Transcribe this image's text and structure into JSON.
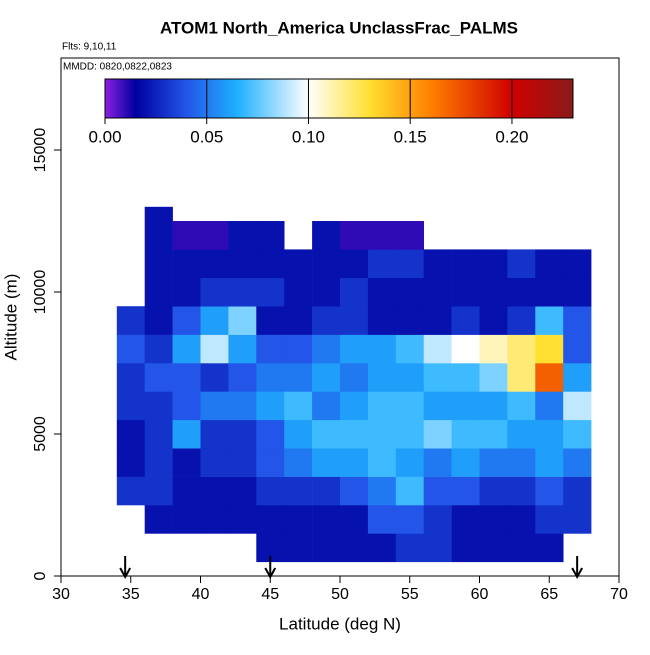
{
  "chart_data": {
    "type": "heatmap",
    "title": "ATOM1 North_America UnclassFrac_PALMS",
    "flights_note": "Flts: 9,10,11",
    "dates_note": "MMDD: 0820,0822,0823",
    "x_label": "Latitude (deg N)",
    "y_label": "Altitude (m)",
    "xlim": [
      30,
      70
    ],
    "xticks": [
      30,
      35,
      40,
      45,
      50,
      55,
      60,
      65,
      70
    ],
    "ylim": [
      0,
      18240
    ],
    "yticks": [
      0,
      5000,
      10000,
      15000
    ],
    "x_edges": [
      34,
      36,
      38,
      40,
      42,
      44,
      46,
      48,
      50,
      52,
      54,
      56,
      58,
      60,
      62,
      64,
      66,
      68
    ],
    "y_edges": [
      500,
      1500,
      2500,
      3500,
      4500,
      5500,
      6500,
      7500,
      8500,
      9500,
      10500,
      11500,
      12500,
      13000
    ],
    "z": [
      [
        null,
        null,
        null,
        null,
        null,
        0.02,
        0.02,
        0.02,
        0.02,
        0.02,
        0.03,
        0.03,
        0.02,
        0.02,
        0.02,
        0.02,
        null
      ],
      [
        null,
        0.02,
        0.02,
        0.02,
        0.02,
        0.02,
        0.02,
        0.02,
        0.02,
        0.04,
        0.04,
        0.03,
        0.02,
        0.02,
        0.02,
        0.03,
        0.03
      ],
      [
        0.03,
        0.03,
        0.02,
        0.02,
        0.02,
        0.03,
        0.03,
        0.03,
        0.04,
        0.05,
        0.07,
        0.04,
        0.04,
        0.03,
        0.03,
        0.04,
        0.03
      ],
      [
        0.02,
        0.03,
        0.02,
        0.03,
        0.03,
        0.04,
        0.05,
        0.06,
        0.06,
        0.07,
        0.06,
        0.05,
        0.06,
        0.05,
        0.05,
        0.06,
        0.05
      ],
      [
        0.02,
        0.03,
        0.06,
        0.03,
        0.03,
        0.04,
        0.06,
        0.07,
        0.07,
        0.07,
        0.07,
        0.08,
        0.07,
        0.07,
        0.06,
        0.06,
        0.07
      ],
      [
        0.03,
        0.03,
        0.04,
        0.05,
        0.05,
        0.06,
        0.07,
        0.05,
        0.06,
        0.07,
        0.07,
        0.06,
        0.06,
        0.06,
        0.07,
        0.05,
        0.09
      ],
      [
        0.03,
        0.04,
        0.04,
        0.03,
        0.04,
        0.05,
        0.05,
        0.06,
        0.05,
        0.06,
        0.06,
        0.07,
        0.07,
        0.08,
        0.12,
        0.17,
        0.06
      ],
      [
        0.04,
        0.03,
        0.06,
        0.09,
        0.06,
        0.04,
        0.04,
        0.05,
        0.06,
        0.06,
        0.07,
        0.09,
        0.1,
        0.11,
        0.12,
        0.13,
        0.04
      ],
      [
        0.03,
        0.02,
        0.04,
        0.06,
        0.08,
        0.02,
        0.02,
        0.03,
        0.03,
        0.02,
        0.02,
        0.02,
        0.03,
        0.02,
        0.03,
        0.07,
        0.04
      ],
      [
        null,
        0.02,
        0.02,
        0.03,
        0.03,
        0.03,
        0.02,
        0.02,
        0.03,
        0.02,
        0.02,
        0.02,
        0.02,
        0.02,
        0.02,
        0.02,
        0.02
      ],
      [
        null,
        0.02,
        0.02,
        0.02,
        0.02,
        0.02,
        0.02,
        0.02,
        0.02,
        0.03,
        0.03,
        0.02,
        0.02,
        0.02,
        0.03,
        0.02,
        0.02
      ],
      [
        null,
        0.02,
        0.01,
        0.01,
        0.02,
        0.02,
        null,
        0.02,
        0.01,
        0.01,
        0.01,
        null,
        null,
        null,
        null,
        null,
        null
      ],
      [
        null,
        0.02,
        null,
        null,
        null,
        null,
        null,
        null,
        null,
        null,
        null,
        null,
        null,
        null,
        null,
        null,
        null
      ]
    ],
    "clim": [
      0,
      0.23
    ],
    "colorbar_ticks": [
      {
        "value": 0,
        "label": "0.00"
      },
      {
        "value": 0.05,
        "label": "0.05"
      },
      {
        "value": 0.1,
        "label": "0.10"
      },
      {
        "value": 0.15,
        "label": "0.15"
      },
      {
        "value": 0.2,
        "label": "0.20"
      }
    ],
    "colorscale": [
      [
        0,
        "#8B20E0"
      ],
      [
        0.015,
        "#0000A0"
      ],
      [
        0.04,
        "#2255E8"
      ],
      [
        0.065,
        "#1EB0FF"
      ],
      [
        0.1,
        "#FFFFFF"
      ],
      [
        0.13,
        "#FFE030"
      ],
      [
        0.16,
        "#FF8000"
      ],
      [
        0.2,
        "#D00000"
      ],
      [
        0.23,
        "#8B1A1A"
      ]
    ],
    "arrows_x": [
      34.6,
      45,
      67
    ]
  }
}
